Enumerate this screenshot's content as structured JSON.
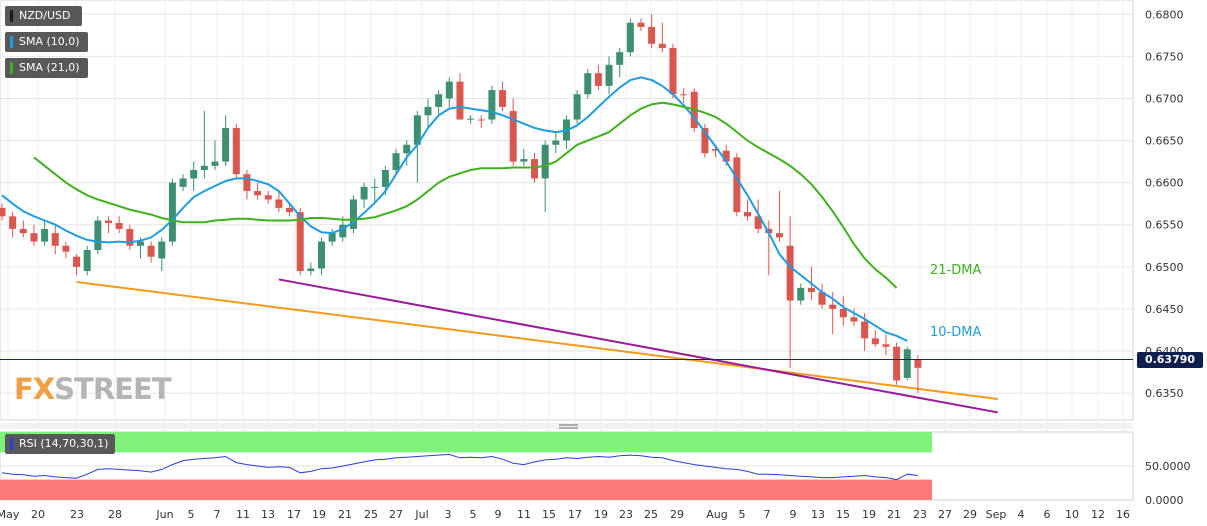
{
  "legend": {
    "symbol": "NZD/USD",
    "sma10": "SMA (10,0)",
    "sma21": "SMA (21,0)",
    "rsi": "RSI (14,70,30,1)"
  },
  "colors": {
    "bull": "#3d8f6f",
    "bear": "#d9574f",
    "sma10": "#1e9de0",
    "sma21": "#40b020",
    "trend_orange": "#f59a1a",
    "trend_purple": "#9a1a9a",
    "rsi_line": "#2b3fd6",
    "rsi_overbought": "#7ff27a",
    "rsi_oversold": "#fb7a7a",
    "price_line": "#1a2a5a"
  },
  "logo": {
    "part1": "FX",
    "part2": "STREET"
  },
  "current_price": "0.63790",
  "chart_data": {
    "type": "candlestick",
    "ylim": [
      0.6318,
      0.6817
    ],
    "y_ticks": [
      "0.6800",
      "0.6750",
      "0.6700",
      "0.6650",
      "0.6600",
      "0.6550",
      "0.6500",
      "0.6450",
      "0.6400",
      "0.6350"
    ],
    "x_ticks": [
      "May",
      "20",
      "23",
      "28",
      "Jun",
      "5",
      "7",
      "11",
      "13",
      "17",
      "19",
      "21",
      "25",
      "27",
      "Jul",
      "3",
      "5",
      "9",
      "11",
      "15",
      "17",
      "19",
      "23",
      "25",
      "29",
      "Aug",
      "5",
      "7",
      "9",
      "13",
      "15",
      "19",
      "21",
      "23",
      "27",
      "29",
      "Sep",
      "4",
      "6",
      "10",
      "12",
      "16"
    ],
    "candles": [
      [
        0.657,
        0.6575,
        0.6555,
        0.656
      ],
      [
        0.656,
        0.6565,
        0.6535,
        0.6545
      ],
      [
        0.6545,
        0.6555,
        0.6535,
        0.654
      ],
      [
        0.654,
        0.655,
        0.6525,
        0.653
      ],
      [
        0.653,
        0.6555,
        0.6525,
        0.6545
      ],
      [
        0.654,
        0.655,
        0.6515,
        0.6525
      ],
      [
        0.6525,
        0.653,
        0.651,
        0.6518
      ],
      [
        0.6512,
        0.6515,
        0.649,
        0.65
      ],
      [
        0.6495,
        0.6525,
        0.649,
        0.652
      ],
      [
        0.652,
        0.656,
        0.6515,
        0.6555
      ],
      [
        0.6555,
        0.656,
        0.654,
        0.6552
      ],
      [
        0.6552,
        0.656,
        0.654,
        0.6545
      ],
      [
        0.6545,
        0.655,
        0.652,
        0.6525
      ],
      [
        0.6525,
        0.6535,
        0.651,
        0.653
      ],
      [
        0.6525,
        0.653,
        0.6505,
        0.6512
      ],
      [
        0.651,
        0.6535,
        0.6495,
        0.653
      ],
      [
        0.653,
        0.6605,
        0.6525,
        0.66
      ],
      [
        0.6595,
        0.661,
        0.659,
        0.6605
      ],
      [
        0.6605,
        0.6625,
        0.659,
        0.6615
      ],
      [
        0.6615,
        0.6685,
        0.6605,
        0.662
      ],
      [
        0.662,
        0.665,
        0.6615,
        0.6625
      ],
      [
        0.6625,
        0.668,
        0.662,
        0.6665
      ],
      [
        0.6665,
        0.667,
        0.6605,
        0.661
      ],
      [
        0.661,
        0.6615,
        0.658,
        0.659
      ],
      [
        0.659,
        0.66,
        0.658,
        0.6585
      ],
      [
        0.6585,
        0.659,
        0.6575,
        0.658
      ],
      [
        0.658,
        0.659,
        0.6565,
        0.657
      ],
      [
        0.657,
        0.6575,
        0.656,
        0.6565
      ],
      [
        0.6565,
        0.657,
        0.649,
        0.6495
      ],
      [
        0.6495,
        0.6505,
        0.649,
        0.6498
      ],
      [
        0.6498,
        0.6535,
        0.649,
        0.653
      ],
      [
        0.653,
        0.6545,
        0.6525,
        0.654
      ],
      [
        0.6535,
        0.656,
        0.653,
        0.655
      ],
      [
        0.6545,
        0.6585,
        0.654,
        0.658
      ],
      [
        0.658,
        0.66,
        0.657,
        0.6595
      ],
      [
        0.6595,
        0.6605,
        0.6575,
        0.6595
      ],
      [
        0.6595,
        0.662,
        0.6585,
        0.6615
      ],
      [
        0.6615,
        0.664,
        0.661,
        0.6635
      ],
      [
        0.6635,
        0.665,
        0.662,
        0.6645
      ],
      [
        0.6645,
        0.6685,
        0.66,
        0.668
      ],
      [
        0.668,
        0.67,
        0.6665,
        0.669
      ],
      [
        0.669,
        0.671,
        0.668,
        0.6705
      ],
      [
        0.67,
        0.6725,
        0.669,
        0.672
      ],
      [
        0.672,
        0.673,
        0.6675,
        0.6675
      ],
      [
        0.6675,
        0.668,
        0.667,
        0.6676
      ],
      [
        0.6675,
        0.668,
        0.6665,
        0.6674
      ],
      [
        0.6675,
        0.6715,
        0.667,
        0.671
      ],
      [
        0.671,
        0.672,
        0.6685,
        0.669
      ],
      [
        0.6685,
        0.67,
        0.662,
        0.6625
      ],
      [
        0.6625,
        0.664,
        0.662,
        0.6628
      ],
      [
        0.6628,
        0.6635,
        0.66,
        0.6605
      ],
      [
        0.6605,
        0.665,
        0.6565,
        0.6645
      ],
      [
        0.6645,
        0.666,
        0.6635,
        0.665
      ],
      [
        0.665,
        0.668,
        0.664,
        0.6675
      ],
      [
        0.6675,
        0.671,
        0.667,
        0.6705
      ],
      [
        0.6705,
        0.6735,
        0.67,
        0.673
      ],
      [
        0.673,
        0.674,
        0.671,
        0.6715
      ],
      [
        0.6715,
        0.675,
        0.6705,
        0.674
      ],
      [
        0.674,
        0.676,
        0.6725,
        0.6755
      ],
      [
        0.6755,
        0.6795,
        0.675,
        0.679
      ],
      [
        0.679,
        0.6795,
        0.678,
        0.6785
      ],
      [
        0.6785,
        0.68,
        0.676,
        0.6765
      ],
      [
        0.6765,
        0.679,
        0.6755,
        0.676
      ],
      [
        0.676,
        0.6765,
        0.67,
        0.6705
      ],
      [
        0.6705,
        0.6712,
        0.6695,
        0.6704
      ],
      [
        0.6708,
        0.6712,
        0.666,
        0.6665
      ],
      [
        0.6665,
        0.667,
        0.663,
        0.6635
      ],
      [
        0.664,
        0.6645,
        0.663,
        0.6638
      ],
      [
        0.6638,
        0.6645,
        0.662,
        0.6625
      ],
      [
        0.663,
        0.6635,
        0.656,
        0.6565
      ],
      [
        0.6565,
        0.658,
        0.6555,
        0.656
      ],
      [
        0.656,
        0.658,
        0.654,
        0.6545
      ],
      [
        0.6545,
        0.6555,
        0.649,
        0.654
      ],
      [
        0.654,
        0.659,
        0.653,
        0.6535
      ],
      [
        0.6525,
        0.656,
        0.638,
        0.646
      ],
      [
        0.646,
        0.648,
        0.6455,
        0.6475
      ],
      [
        0.6475,
        0.65,
        0.646,
        0.647
      ],
      [
        0.647,
        0.648,
        0.645,
        0.6455
      ],
      [
        0.6455,
        0.647,
        0.642,
        0.645
      ],
      [
        0.645,
        0.6465,
        0.643,
        0.644
      ],
      [
        0.644,
        0.645,
        0.643,
        0.6435
      ],
      [
        0.6435,
        0.6445,
        0.64,
        0.6415
      ],
      [
        0.6415,
        0.6425,
        0.6405,
        0.6408
      ],
      [
        0.6408,
        0.642,
        0.6395,
        0.6405
      ],
      [
        0.6405,
        0.641,
        0.636,
        0.6365
      ],
      [
        0.6368,
        0.6405,
        0.6365,
        0.6402
      ],
      [
        0.639,
        0.6395,
        0.635,
        0.638
      ]
    ],
    "sma10": [
      0.6585,
      0.6575,
      0.6566,
      0.656,
      0.6555,
      0.655,
      0.6543,
      0.6537,
      0.6532,
      0.653,
      0.6529,
      0.653,
      0.6529,
      0.6531,
      0.6535,
      0.6544,
      0.6556,
      0.657,
      0.6583,
      0.659,
      0.6596,
      0.6602,
      0.6605,
      0.6605,
      0.6602,
      0.6598,
      0.659,
      0.6575,
      0.656,
      0.6548,
      0.6541,
      0.654,
      0.6545,
      0.6553,
      0.6564,
      0.6576,
      0.659,
      0.661,
      0.663,
      0.6645,
      0.6665,
      0.668,
      0.6688,
      0.669,
      0.6688,
      0.6686,
      0.6684,
      0.668,
      0.6675,
      0.667,
      0.6665,
      0.6662,
      0.666,
      0.6662,
      0.6668,
      0.6678,
      0.669,
      0.6702,
      0.6713,
      0.6722,
      0.6725,
      0.6722,
      0.6715,
      0.6705,
      0.6692,
      0.6677,
      0.666,
      0.6643,
      0.6625,
      0.6605,
      0.6585,
      0.6563,
      0.654,
      0.6515,
      0.65,
      0.649,
      0.648,
      0.647,
      0.6462,
      0.6452,
      0.6445,
      0.6438,
      0.643,
      0.6422,
      0.6418,
      0.6412
    ],
    "sma21": [
      0.663,
      0.662,
      0.661,
      0.66,
      0.6592,
      0.6585,
      0.658,
      0.6576,
      0.6572,
      0.6568,
      0.6565,
      0.6562,
      0.6558,
      0.6555,
      0.6553,
      0.6553,
      0.6553,
      0.6555,
      0.6556,
      0.6557,
      0.6557,
      0.6556,
      0.6555,
      0.6555,
      0.6555,
      0.6556,
      0.6558,
      0.6558,
      0.6557,
      0.6556,
      0.6556,
      0.6557,
      0.6559,
      0.6563,
      0.6567,
      0.6572,
      0.658,
      0.659,
      0.66,
      0.6607,
      0.6611,
      0.6615,
      0.6617,
      0.6617,
      0.6617,
      0.6618,
      0.6618,
      0.6618,
      0.662,
      0.6625,
      0.6635,
      0.6645,
      0.665,
      0.6655,
      0.666,
      0.667,
      0.668,
      0.6688,
      0.6693,
      0.6695,
      0.6693,
      0.669,
      0.6687,
      0.6683,
      0.6678,
      0.667,
      0.666,
      0.665,
      0.6642,
      0.6635,
      0.6628,
      0.662,
      0.661,
      0.6598,
      0.6583,
      0.6566,
      0.6547,
      0.6527,
      0.651,
      0.6497,
      0.6487,
      0.6475
    ],
    "rsi": [
      40,
      38,
      37,
      35,
      36,
      34,
      33,
      32,
      38,
      45,
      46,
      45,
      44,
      43,
      41,
      45,
      52,
      58,
      60,
      61,
      62,
      64,
      55,
      52,
      50,
      48,
      49,
      48,
      40,
      42,
      46,
      47,
      50,
      53,
      56,
      59,
      60,
      62,
      63,
      64,
      65,
      66,
      67,
      62,
      63,
      62,
      64,
      60,
      54,
      52,
      56,
      59,
      60,
      62,
      61,
      63,
      64,
      63,
      65,
      66,
      65,
      63,
      62,
      58,
      55,
      52,
      50,
      48,
      46,
      45,
      42,
      38,
      38,
      37,
      36,
      35,
      34,
      33,
      33,
      34,
      35,
      36,
      34,
      33,
      30,
      38,
      36
    ],
    "rsi_levels": {
      "overbought": 70,
      "oversold": 30
    },
    "rsi_ticks": [
      "50.0000",
      "0.0000"
    ],
    "annotations": [
      "21-DMA",
      "10-DMA"
    ],
    "trendlines": [
      {
        "color": "orange",
        "from": [
          "May 23",
          0.6482
        ],
        "to": [
          "Aug 29",
          0.6343
        ]
      },
      {
        "color": "purple",
        "from": [
          "Jun 14",
          0.6485
        ],
        "to": [
          "Aug 29",
          0.6327
        ]
      }
    ]
  }
}
